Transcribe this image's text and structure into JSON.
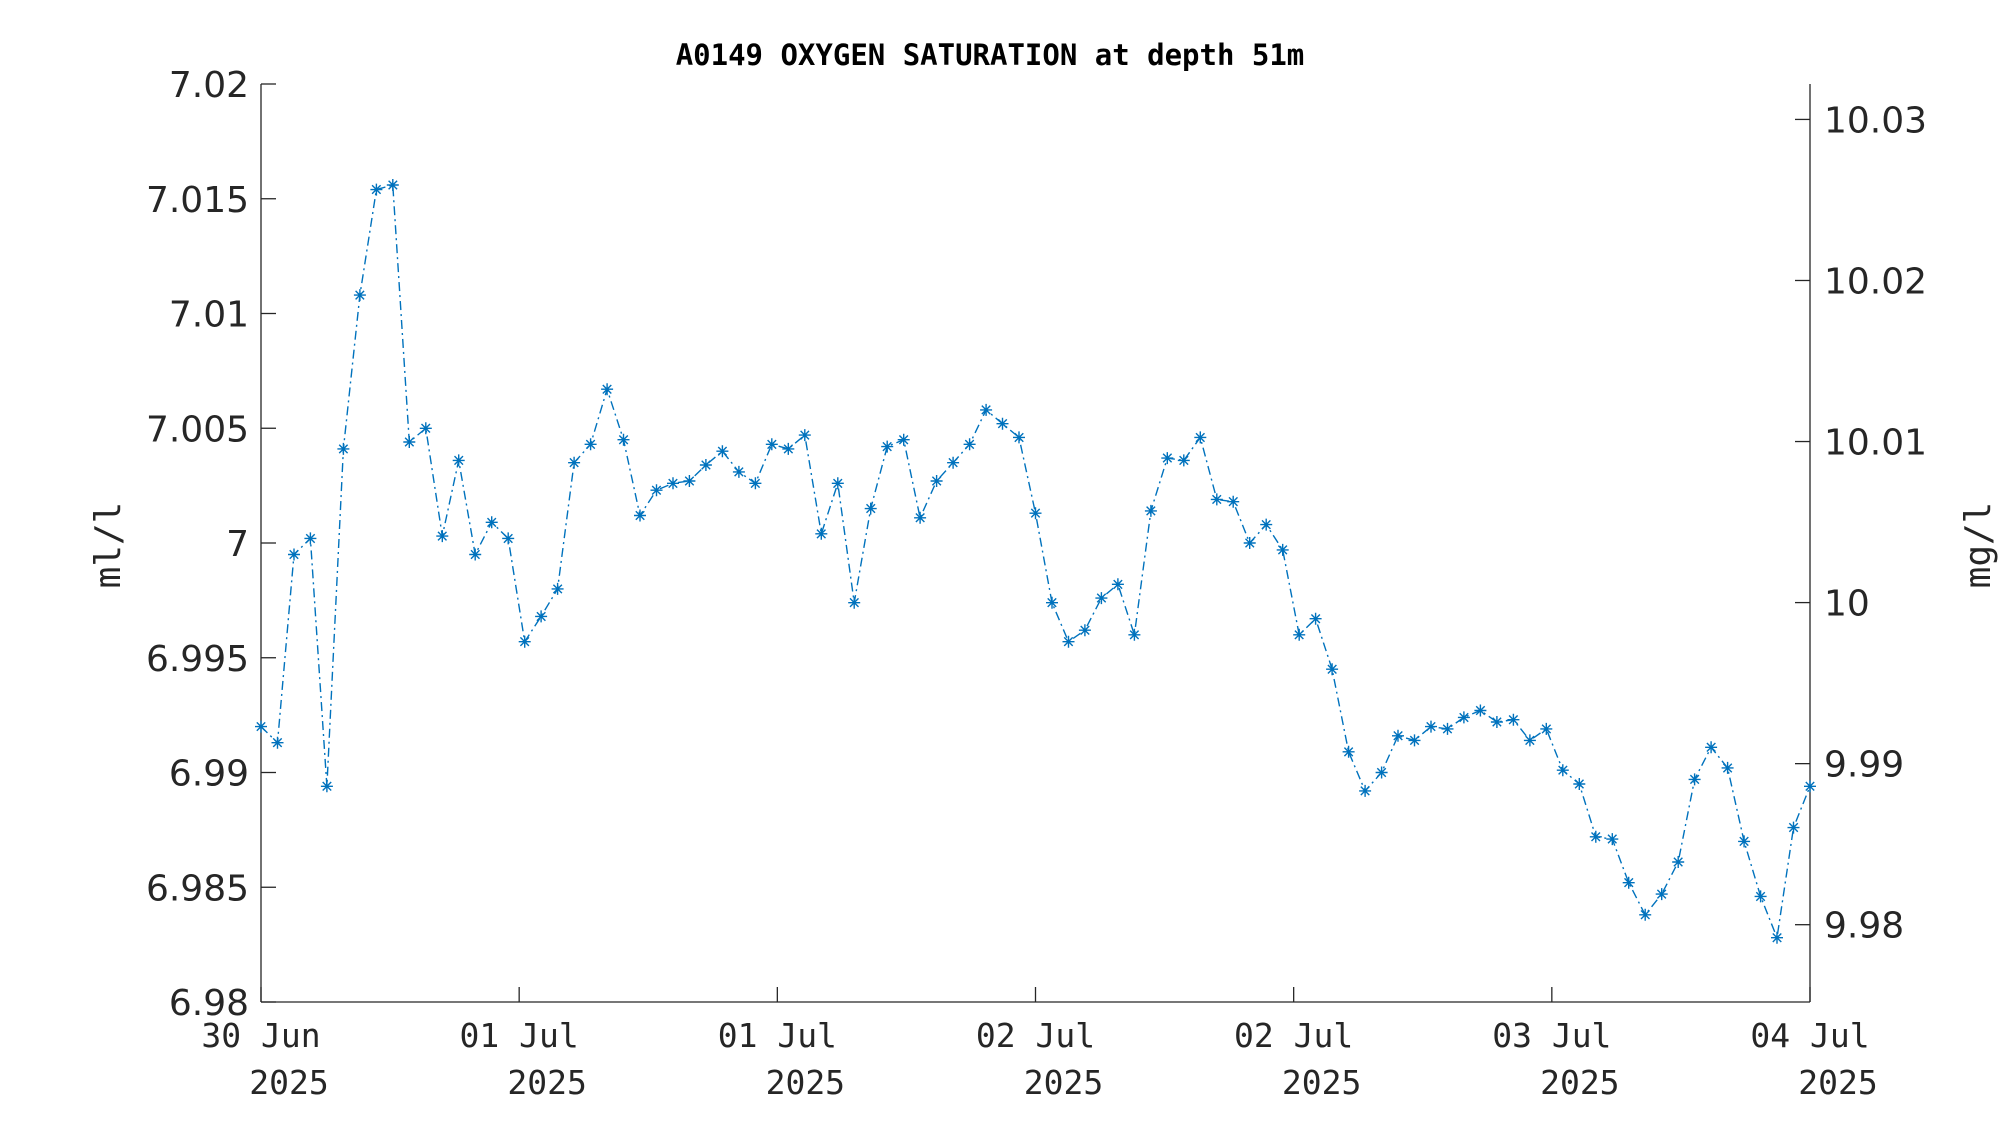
{
  "chart_data": {
    "type": "line",
    "title": "A0149 OXYGEN SATURATION at depth 51m",
    "ylabel": "ml/l",
    "ylabel_right": "mg/l",
    "ylim": [
      6.98,
      7.02
    ],
    "ylim_right": [
      9.9752,
      10.0322
    ],
    "yticks": [
      "6.98",
      "6.985",
      "6.99",
      "6.995",
      "7",
      "7.005",
      "7.01",
      "7.015",
      "7.02"
    ],
    "yticks_right": [
      "9.98",
      "9.99",
      "10",
      "10.01",
      "10.02",
      "10.03"
    ],
    "xticks": [
      {
        "day": "30 Jun",
        "year": "2025"
      },
      {
        "day": "01 Jul",
        "year": "2025"
      },
      {
        "day": "01 Jul",
        "year": "2025"
      },
      {
        "day": "02 Jul",
        "year": "2025"
      },
      {
        "day": "02 Jul",
        "year": "2025"
      },
      {
        "day": "03 Jul",
        "year": "2025"
      },
      {
        "day": "04 Jul",
        "year": "2025"
      }
    ],
    "series_color": "#0072BD",
    "marker": "asterisk",
    "line_style": "dash-dot",
    "grid": false,
    "series": [
      {
        "values": [
          6.992,
          6.9913,
          6.9995,
          7.0002,
          6.9894,
          7.0041,
          7.0108,
          7.0154,
          7.0156,
          7.0044,
          7.005,
          7.0003,
          7.0036,
          6.9995,
          7.0009,
          7.0002,
          6.9957,
          6.9968,
          6.998,
          7.0035,
          7.0043,
          7.0067,
          7.0045,
          7.0012,
          7.0023,
          7.0026,
          7.0027,
          7.0034,
          7.004,
          7.0031,
          7.0026,
          7.0043,
          7.0041,
          7.0047,
          7.0004,
          7.0026,
          6.9974,
          7.0015,
          7.0042,
          7.0045,
          7.0011,
          7.0027,
          7.0035,
          7.0043,
          7.0058,
          7.0052,
          7.0046,
          7.0013,
          6.9974,
          6.9957,
          6.9962,
          6.9976,
          6.9982,
          6.996,
          7.0014,
          7.0037,
          7.0036,
          7.0046,
          7.0019,
          7.0018,
          7.0,
          7.0008,
          6.9997,
          6.996,
          6.9967,
          6.9945,
          6.9909,
          6.9892,
          6.99,
          6.9916,
          6.9914,
          6.992,
          6.9919,
          6.9924,
          6.9927,
          6.9922,
          6.9923,
          6.9914,
          6.9919,
          6.9901,
          6.9895,
          6.9872,
          6.9871,
          6.9852,
          6.9838,
          6.9847,
          6.9861,
          6.9897,
          6.9911,
          6.9902,
          6.987,
          6.9846,
          6.9828,
          6.9876,
          6.9894
        ]
      }
    ]
  }
}
